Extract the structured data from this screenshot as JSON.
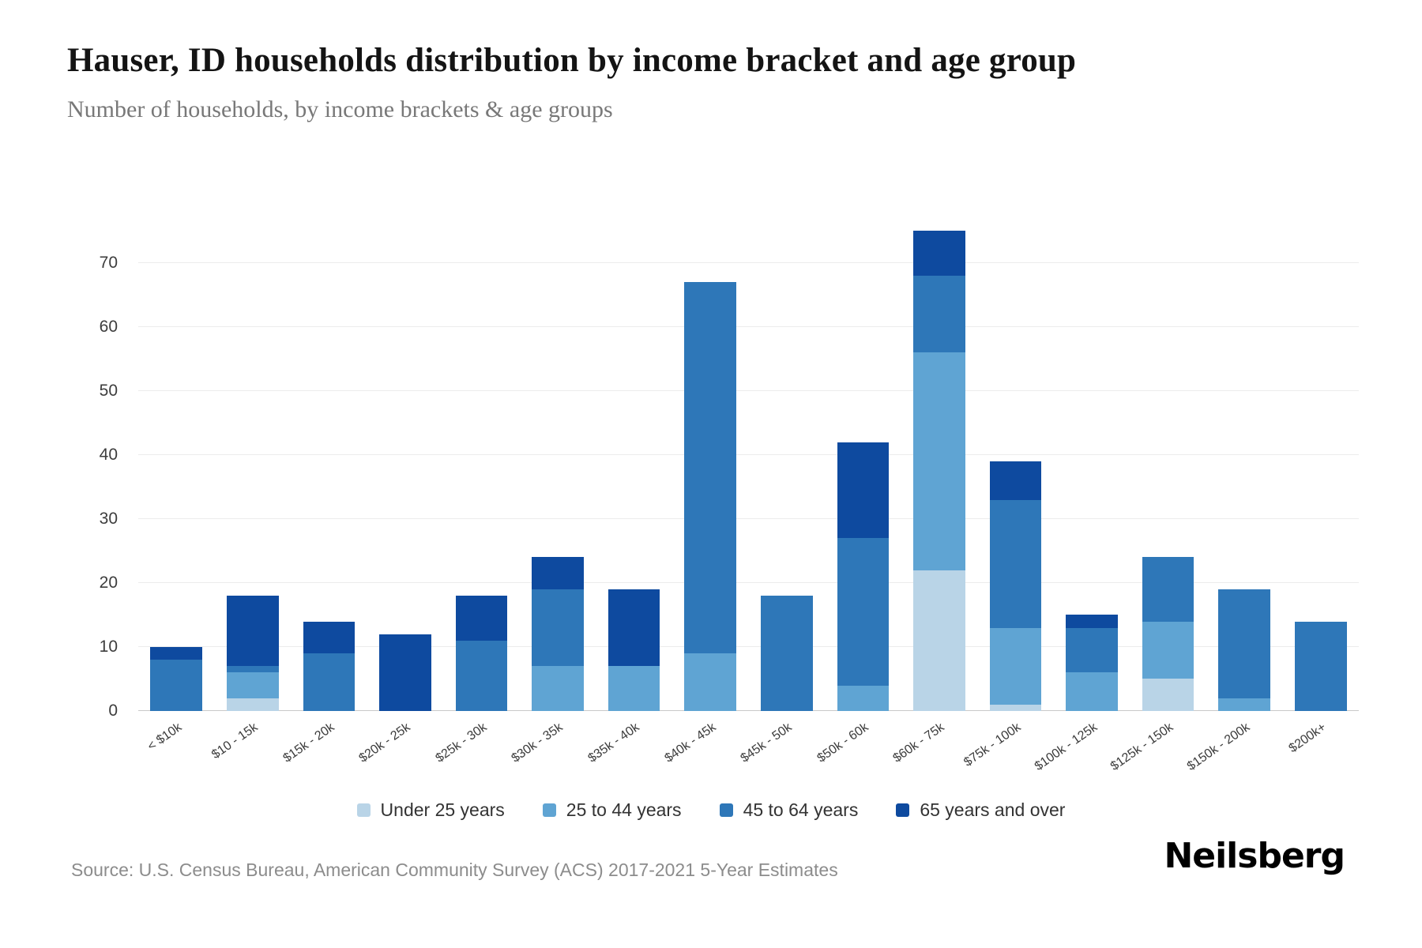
{
  "chart_data": {
    "type": "bar",
    "stacked": true,
    "title": "Hauser, ID households distribution by income bracket and age group",
    "subtitle": "Number of households, by income brackets & age groups",
    "categories": [
      "< $10k",
      "$10 - 15k",
      "$15k - 20k",
      "$20k - 25k",
      "$25k - 30k",
      "$30k - 35k",
      "$35k - 40k",
      "$40k - 45k",
      "$45k - 50k",
      "$50k - 60k",
      "$60k - 75k",
      "$75k - 100k",
      "$100k - 125k",
      "$125k - 150k",
      "$150k - 200k",
      "$200k+"
    ],
    "series": [
      {
        "name": "Under 25 years",
        "color": "#b9d4e7",
        "values": [
          0,
          2,
          0,
          0,
          0,
          0,
          0,
          0,
          0,
          0,
          22,
          1,
          0,
          5,
          0,
          0
        ]
      },
      {
        "name": "25 to 44 years",
        "color": "#5fa4d3",
        "values": [
          0,
          4,
          0,
          0,
          0,
          7,
          7,
          9,
          0,
          4,
          34,
          12,
          6,
          9,
          2,
          0
        ]
      },
      {
        "name": "45 to 64 years",
        "color": "#2e77b8",
        "values": [
          8,
          1,
          9,
          0,
          11,
          12,
          0,
          58,
          18,
          23,
          12,
          20,
          7,
          10,
          17,
          14
        ]
      },
      {
        "name": "65 years and over",
        "color": "#0e4a9f",
        "values": [
          2,
          11,
          5,
          12,
          7,
          5,
          12,
          0,
          0,
          15,
          7,
          6,
          2,
          0,
          0,
          0
        ]
      }
    ],
    "totals": [
      10,
      18,
      14,
      12,
      18,
      24,
      19,
      67,
      18,
      42,
      75,
      39,
      15,
      24,
      19,
      14
    ],
    "yticks": [
      0,
      10,
      20,
      30,
      40,
      50,
      60,
      70
    ],
    "ymax": 75,
    "xlabel": "",
    "ylabel": "",
    "grid": true,
    "legend_position": "bottom"
  },
  "footer": {
    "source": "Source: U.S. Census Bureau, American Community Survey (ACS) 2017-2021 5-Year Estimates",
    "brand": "Neilsberg"
  }
}
